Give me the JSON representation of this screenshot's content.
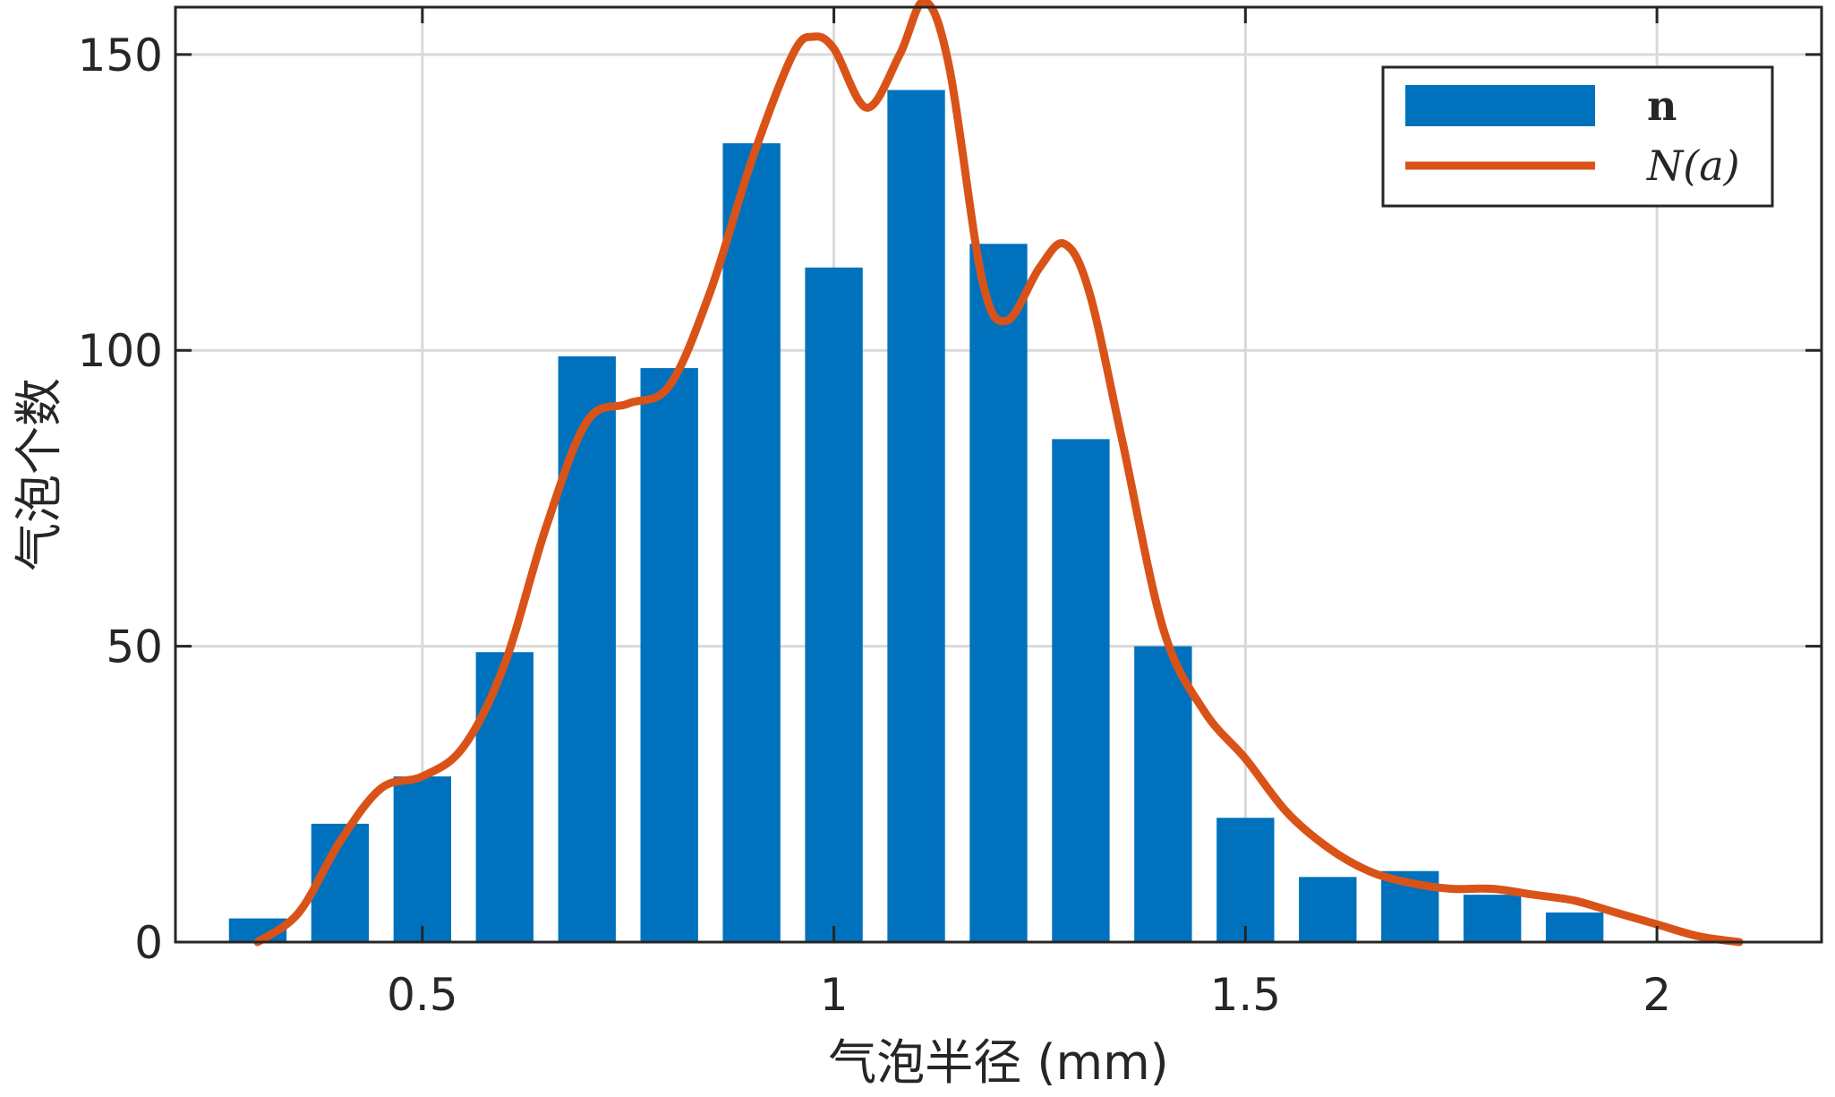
{
  "chart_data": {
    "type": "bar",
    "title": "",
    "xlabel": "气泡半径 (mm)",
    "ylabel": "气泡个数",
    "xlim": [
      0.2,
      2.2
    ],
    "ylim": [
      0,
      158
    ],
    "grid": true,
    "legend_position": "top-right",
    "xticks": [
      0.5,
      1,
      1.5,
      2
    ],
    "xtick_labels": [
      "0.5",
      "1",
      "1.5",
      "2"
    ],
    "yticks": [
      0,
      50,
      100,
      150
    ],
    "ytick_labels": [
      "0",
      "50",
      "100",
      "150"
    ],
    "bar_width": 0.07,
    "series": [
      {
        "name": "n",
        "type": "bar",
        "color": "#0072BD",
        "x": [
          0.3,
          0.4,
          0.5,
          0.6,
          0.7,
          0.8,
          0.9,
          1.0,
          1.1,
          1.2,
          1.3,
          1.4,
          1.5,
          1.6,
          1.7,
          1.8,
          1.9
        ],
        "values": [
          4,
          20,
          28,
          49,
          99,
          97,
          135,
          114,
          144,
          118,
          85,
          50,
          21,
          11,
          12,
          8,
          5
        ]
      },
      {
        "name": "N(a)",
        "type": "line",
        "color": "#D95319",
        "x": [
          0.3,
          0.35,
          0.4,
          0.45,
          0.5,
          0.55,
          0.6,
          0.65,
          0.7,
          0.75,
          0.8,
          0.85,
          0.9,
          0.95,
          0.975,
          1.0,
          1.04,
          1.08,
          1.11,
          1.14,
          1.18,
          1.21,
          1.25,
          1.28,
          1.31,
          1.35,
          1.4,
          1.45,
          1.5,
          1.55,
          1.6,
          1.65,
          1.7,
          1.75,
          1.8,
          1.85,
          1.9,
          1.95,
          2.0,
          2.05,
          2.1
        ],
        "values": [
          0,
          5,
          17,
          26,
          28,
          33,
          47,
          70,
          88,
          91,
          94,
          110,
          132,
          150,
          153,
          151,
          141,
          150,
          159,
          148,
          112,
          105,
          114,
          118,
          110,
          85,
          53,
          39,
          31,
          22,
          16,
          12,
          10,
          9,
          9,
          8,
          7,
          5,
          3,
          1,
          0
        ]
      }
    ]
  }
}
